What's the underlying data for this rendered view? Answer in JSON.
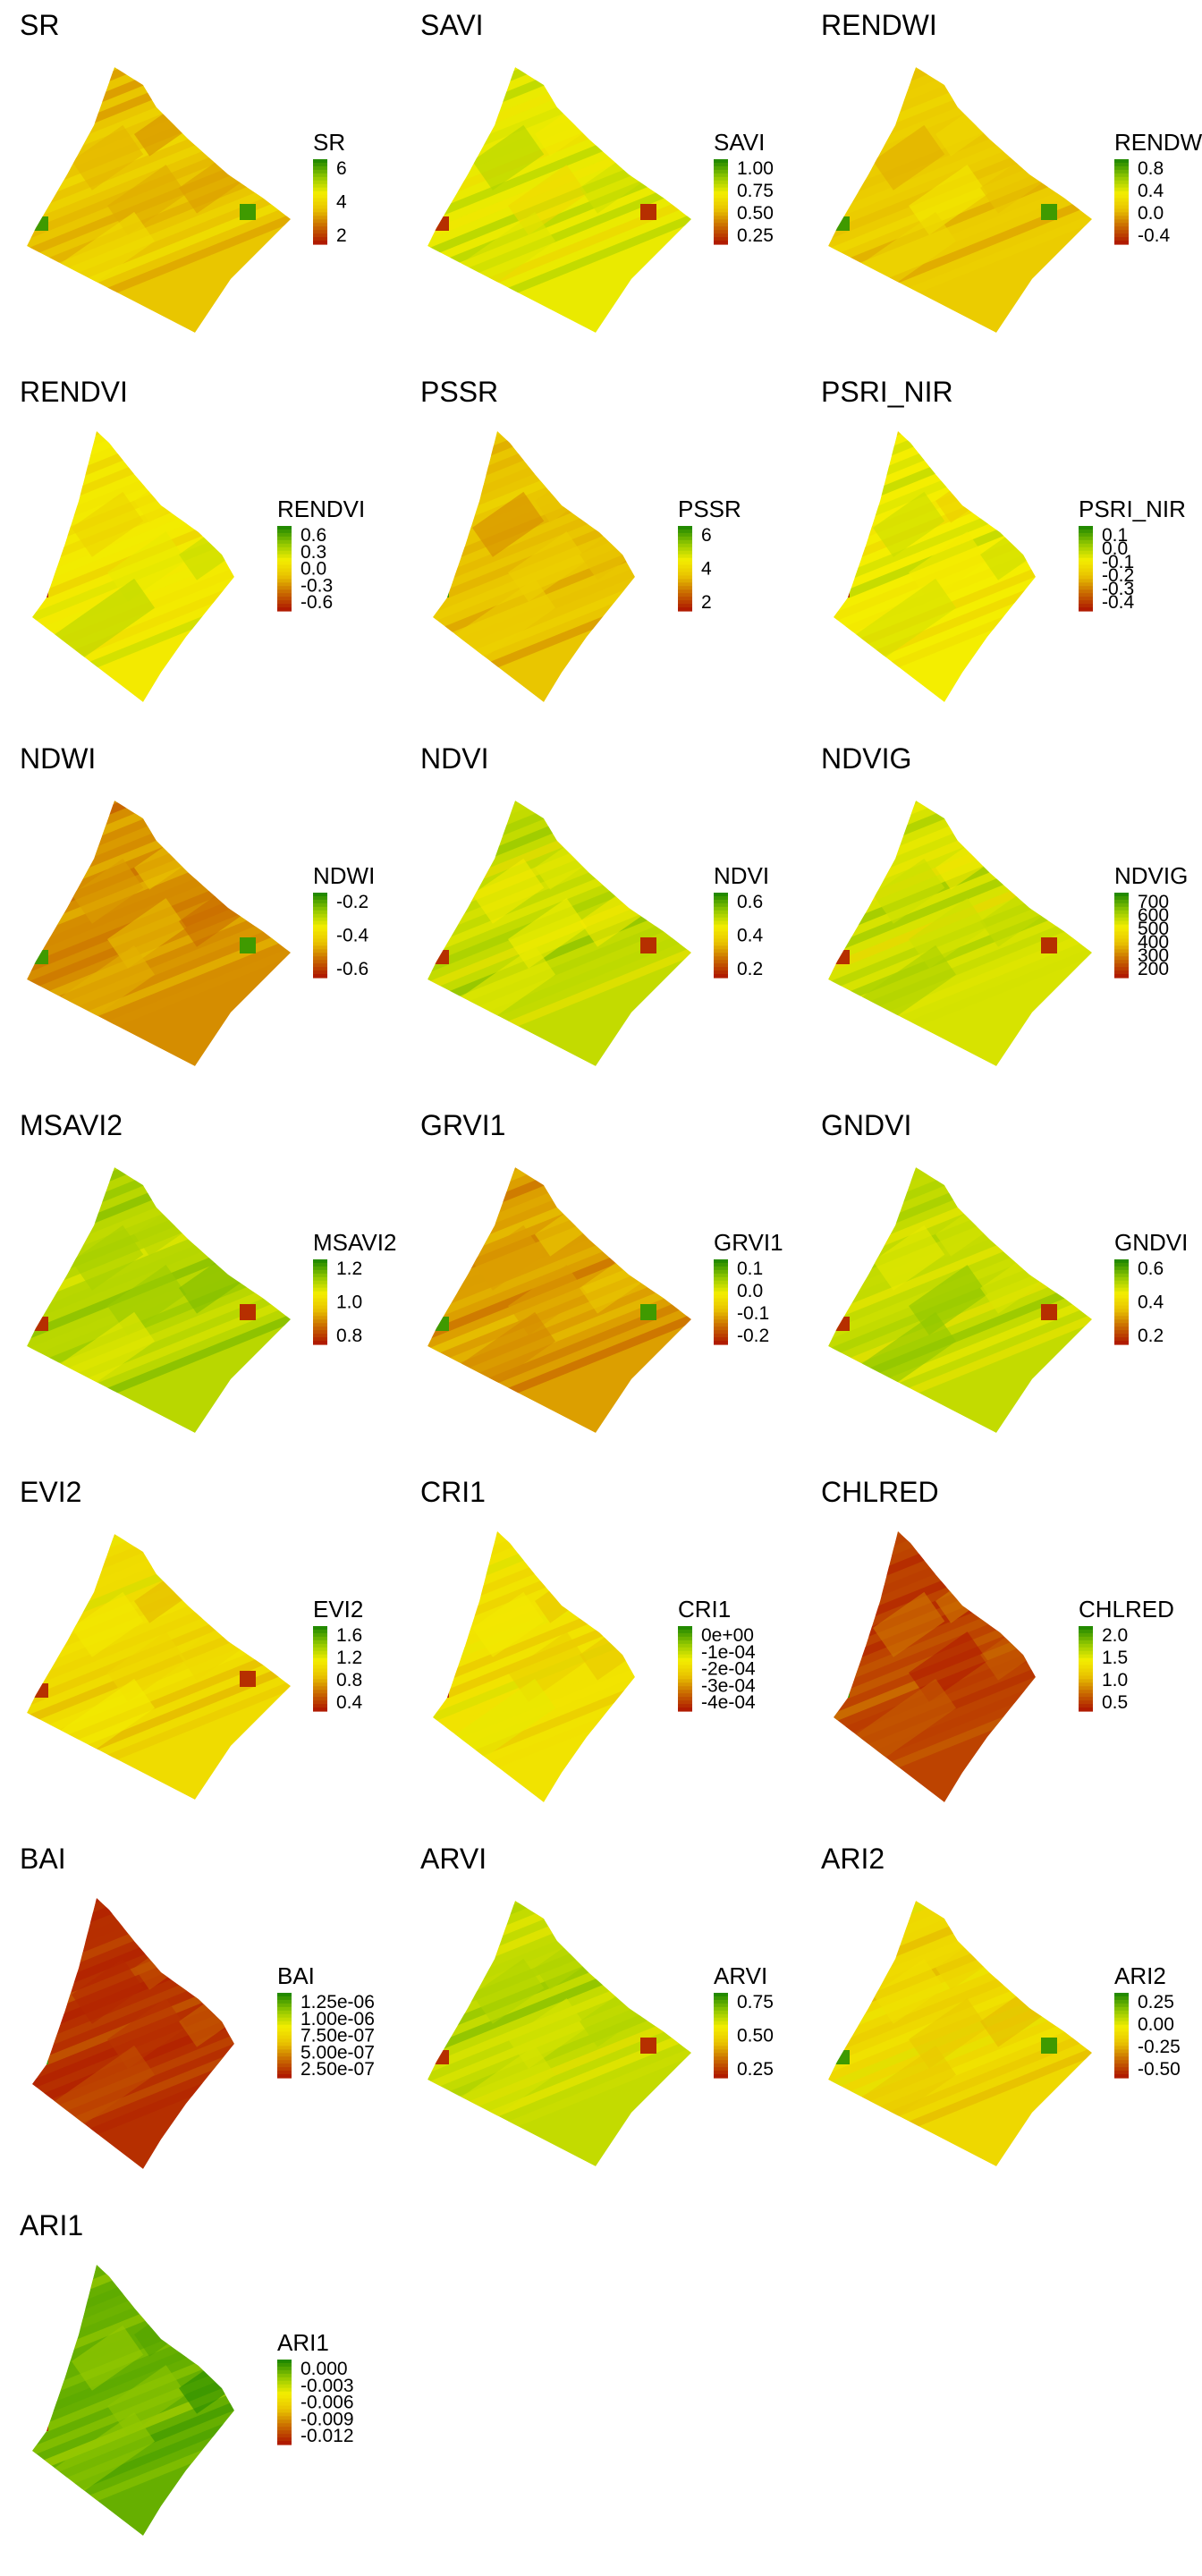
{
  "chart_data": [
    {
      "type": "heatmap",
      "title": "SR",
      "legend": {
        "title": "SR",
        "ticks": [
          "6",
          "4",
          "2"
        ]
      },
      "shape": "a",
      "palette": [
        "#b01b00",
        "#c96b00",
        "#e8c100",
        "#f4ee00",
        "#92c800",
        "#238a00"
      ],
      "fill": 0.42
    },
    {
      "type": "heatmap",
      "title": "SAVI",
      "legend": {
        "title": "SAVI",
        "ticks": [
          "1.00",
          "0.75",
          "0.50",
          "0.25"
        ]
      },
      "shape": "a",
      "palette": [
        "#b01b00",
        "#c96b00",
        "#e8c100",
        "#f4ee00",
        "#92c800",
        "#238a00"
      ],
      "fill": 0.62
    },
    {
      "type": "heatmap",
      "title": "RENDWI",
      "legend": {
        "title": "RENDWI",
        "ticks": [
          "0.8",
          "0.4",
          "0.0",
          "-0.4"
        ]
      },
      "shape": "a",
      "palette": [
        "#b01b00",
        "#c96b00",
        "#e8c100",
        "#f4ee00",
        "#92c800",
        "#238a00"
      ],
      "fill": 0.45
    },
    {
      "type": "heatmap",
      "title": "RENDVI",
      "legend": {
        "title": "RENDVI",
        "ticks": [
          "0.6",
          "0.3",
          "0.0",
          "-0.3",
          "-0.6"
        ]
      },
      "shape": "b",
      "palette": [
        "#b01b00",
        "#c96b00",
        "#e8c100",
        "#f4ee00",
        "#92c800",
        "#238a00"
      ],
      "fill": 0.58
    },
    {
      "type": "heatmap",
      "title": "PSSR",
      "legend": {
        "title": "PSSR",
        "ticks": [
          "6",
          "4",
          "2"
        ]
      },
      "shape": "b",
      "palette": [
        "#b01b00",
        "#c96b00",
        "#e8c100",
        "#f4ee00",
        "#92c800",
        "#238a00"
      ],
      "fill": 0.42
    },
    {
      "type": "heatmap",
      "title": "PSRI_NIR",
      "legend": {
        "title": "PSRI_NIR",
        "ticks": [
          "0.1",
          "0.0",
          "-0.1",
          "-0.2",
          "-0.3",
          "-0.4"
        ]
      },
      "shape": "b",
      "palette": [
        "#b01b00",
        "#c96b00",
        "#e8c100",
        "#f4ee00",
        "#92c800",
        "#238a00"
      ],
      "fill": 0.6
    },
    {
      "type": "heatmap",
      "title": "NDWI",
      "legend": {
        "title": "NDWI",
        "ticks": [
          "-0.2",
          "-0.4",
          "-0.6"
        ]
      },
      "shape": "a",
      "palette": [
        "#b01b00",
        "#c96b00",
        "#e8c100",
        "#f4ee00",
        "#92c800",
        "#238a00"
      ],
      "fill": 0.28
    },
    {
      "type": "heatmap",
      "title": "NDVI",
      "legend": {
        "title": "NDVI",
        "ticks": [
          "0.6",
          "0.4",
          "0.2"
        ]
      },
      "shape": "a",
      "palette": [
        "#b01b00",
        "#c96b00",
        "#e8c100",
        "#f4ee00",
        "#92c800",
        "#238a00"
      ],
      "fill": 0.7
    },
    {
      "type": "heatmap",
      "title": "NDVIG",
      "legend": {
        "title": "NDVIG",
        "ticks": [
          "700",
          "600",
          "500",
          "400",
          "300",
          "200"
        ]
      },
      "shape": "a",
      "palette": [
        "#b01b00",
        "#c96b00",
        "#e8c100",
        "#f4ee00",
        "#92c800",
        "#238a00"
      ],
      "fill": 0.66
    },
    {
      "type": "heatmap",
      "title": "MSAVI2",
      "legend": {
        "title": "MSAVI2",
        "ticks": [
          "1.2",
          "1.0",
          "0.8"
        ]
      },
      "shape": "a",
      "palette": [
        "#b01b00",
        "#c96b00",
        "#e8c100",
        "#f4ee00",
        "#92c800",
        "#238a00"
      ],
      "fill": 0.72
    },
    {
      "type": "heatmap",
      "title": "GRVI1",
      "legend": {
        "title": "GRVI1",
        "ticks": [
          "0.1",
          "0.0",
          "-0.1",
          "-0.2"
        ]
      },
      "shape": "a",
      "palette": [
        "#b01b00",
        "#c96b00",
        "#e8c100",
        "#f4ee00",
        "#92c800",
        "#238a00"
      ],
      "fill": 0.32
    },
    {
      "type": "heatmap",
      "title": "GNDVI",
      "legend": {
        "title": "GNDVI",
        "ticks": [
          "0.6",
          "0.4",
          "0.2"
        ]
      },
      "shape": "a",
      "palette": [
        "#b01b00",
        "#c96b00",
        "#e8c100",
        "#f4ee00",
        "#92c800",
        "#238a00"
      ],
      "fill": 0.7
    },
    {
      "type": "heatmap",
      "title": "EVI2",
      "legend": {
        "title": "EVI2",
        "ticks": [
          "1.6",
          "1.2",
          "0.8",
          "0.4"
        ]
      },
      "shape": "a",
      "palette": [
        "#b01b00",
        "#c96b00",
        "#e8c100",
        "#f4ee00",
        "#92c800",
        "#238a00"
      ],
      "fill": 0.52
    },
    {
      "type": "heatmap",
      "title": "CRI1",
      "legend": {
        "title": "CRI1",
        "ticks": [
          "0e+00",
          "-1e-04",
          "-2e-04",
          "-3e-04",
          "-4e-04"
        ]
      },
      "shape": "b",
      "palette": [
        "#b01b00",
        "#c96b00",
        "#e8c100",
        "#f4ee00",
        "#92c800",
        "#238a00"
      ],
      "fill": 0.55
    },
    {
      "type": "heatmap",
      "title": "CHLRED",
      "legend": {
        "title": "CHLRED",
        "ticks": [
          "2.0",
          "1.5",
          "1.0",
          "0.5"
        ]
      },
      "shape": "b",
      "palette": [
        "#b01b00",
        "#c96b00",
        "#e8c100",
        "#f4ee00",
        "#92c800",
        "#238a00"
      ],
      "fill": 0.1
    },
    {
      "type": "heatmap",
      "title": "BAI",
      "legend": {
        "title": "BAI",
        "ticks": [
          "1.25e-06",
          "1.00e-06",
          "7.50e-07",
          "5.00e-07",
          "2.50e-07"
        ]
      },
      "shape": "b",
      "palette": [
        "#b01b00",
        "#c96b00",
        "#e8c100",
        "#f4ee00",
        "#92c800",
        "#238a00"
      ],
      "fill": 0.05
    },
    {
      "type": "heatmap",
      "title": "ARVI",
      "legend": {
        "title": "ARVI",
        "ticks": [
          "0.75",
          "0.50",
          "0.25"
        ]
      },
      "shape": "a",
      "palette": [
        "#b01b00",
        "#c96b00",
        "#e8c100",
        "#f4ee00",
        "#92c800",
        "#238a00"
      ],
      "fill": 0.7
    },
    {
      "type": "heatmap",
      "title": "ARI2",
      "legend": {
        "title": "ARI2",
        "ticks": [
          "0.25",
          "0.00",
          "-0.25",
          "-0.50"
        ]
      },
      "shape": "a",
      "palette": [
        "#b01b00",
        "#c96b00",
        "#e8c100",
        "#f4ee00",
        "#92c800",
        "#238a00"
      ],
      "fill": 0.5
    },
    {
      "type": "heatmap",
      "title": "ARI1",
      "legend": {
        "title": "ARI1",
        "ticks": [
          "0.000",
          "-0.003",
          "-0.006",
          "-0.009",
          "-0.012"
        ]
      },
      "shape": "b",
      "palette": [
        "#b01b00",
        "#c96b00",
        "#e8c100",
        "#f4ee00",
        "#92c800",
        "#238a00"
      ],
      "fill": 0.88
    }
  ]
}
